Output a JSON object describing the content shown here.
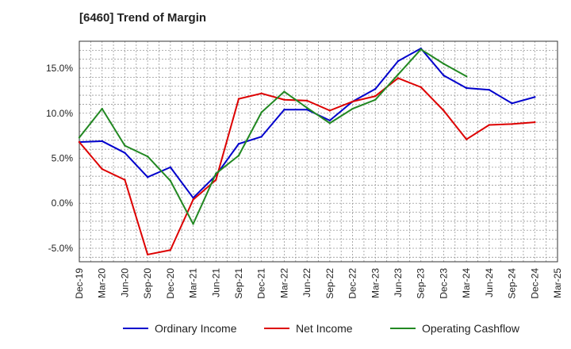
{
  "chart_data": {
    "type": "line",
    "title": "[6460]  Trend of Margin",
    "xlabel": "",
    "ylabel": "",
    "x": [
      "Dec-19",
      "Mar-20",
      "Jun-20",
      "Sep-20",
      "Dec-20",
      "Mar-21",
      "Jun-21",
      "Sep-21",
      "Dec-21",
      "Mar-22",
      "Jun-22",
      "Sep-22",
      "Dec-22",
      "Mar-23",
      "Jun-23",
      "Sep-23",
      "Dec-23",
      "Mar-24",
      "Jun-24",
      "Sep-24",
      "Dec-24",
      "Mar-25"
    ],
    "ylim": [
      -6.5,
      18
    ],
    "yticks": [
      -5,
      0,
      5,
      10,
      15
    ],
    "ytick_labels": [
      "-5.0%",
      "0.0%",
      "5.0%",
      "10.0%",
      "15.0%"
    ],
    "grid": true,
    "legend_position": "bottom",
    "series": [
      {
        "name": "Ordinary Income",
        "color": "#0000cc",
        "values": [
          6.8,
          6.9,
          5.6,
          2.9,
          4.0,
          0.6,
          3.1,
          6.6,
          7.4,
          10.4,
          10.4,
          9.2,
          11.3,
          12.7,
          15.8,
          17.2,
          14.2,
          12.8,
          12.6,
          11.1,
          11.8,
          null
        ]
      },
      {
        "name": "Net Income",
        "color": "#dd0000",
        "values": [
          6.8,
          3.8,
          2.6,
          -5.7,
          -5.2,
          0.4,
          2.6,
          11.6,
          12.2,
          11.5,
          11.4,
          10.3,
          11.3,
          11.9,
          13.9,
          12.9,
          10.3,
          7.1,
          8.7,
          8.8,
          9.0,
          null
        ]
      },
      {
        "name": "Operating Cashflow",
        "color": "#228822",
        "values": [
          7.3,
          10.5,
          6.4,
          5.2,
          2.5,
          -2.3,
          3.3,
          5.3,
          10.1,
          12.4,
          10.6,
          8.9,
          10.5,
          11.5,
          14.3,
          17.1,
          15.5,
          14.1,
          null,
          null,
          null,
          null
        ]
      }
    ]
  }
}
